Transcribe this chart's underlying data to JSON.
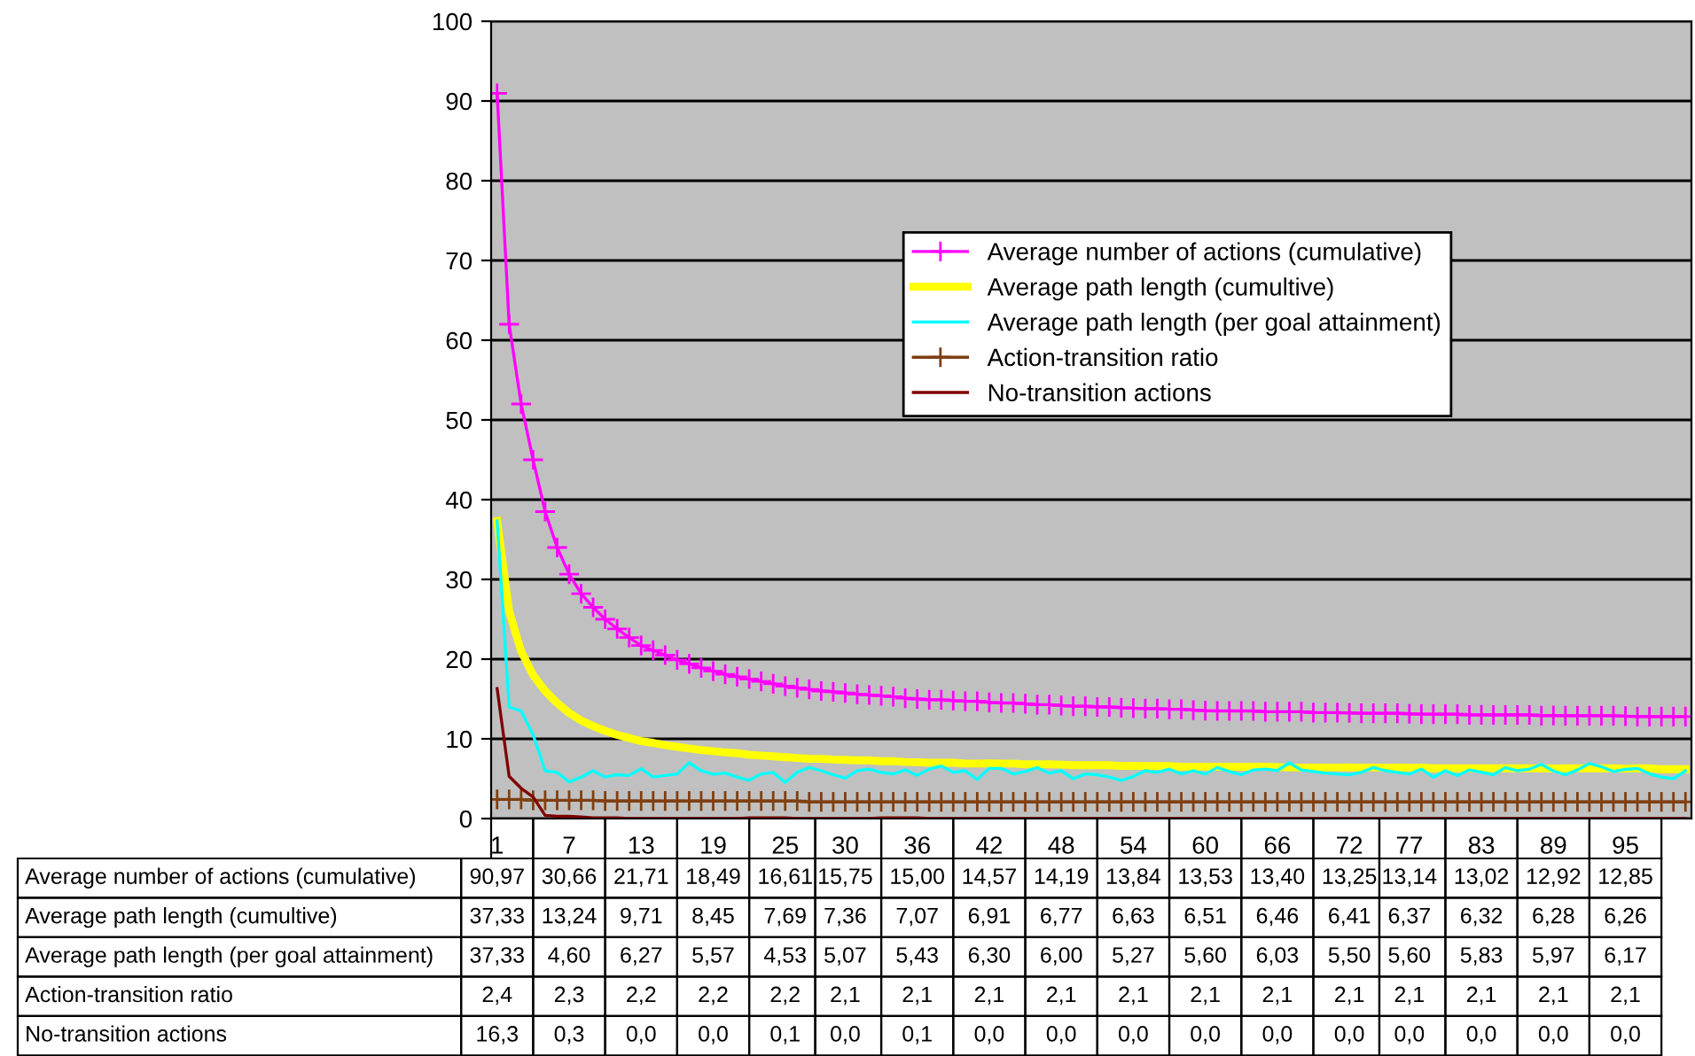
{
  "chart_data": {
    "type": "line",
    "categories": [
      "1",
      null,
      null,
      null,
      null,
      null,
      "7",
      null,
      null,
      null,
      null,
      null,
      "13",
      null,
      null,
      null,
      null,
      null,
      "19",
      null,
      null,
      null,
      null,
      null,
      "25",
      null,
      null,
      null,
      null,
      "30",
      null,
      null,
      null,
      null,
      null,
      "36",
      null,
      null,
      null,
      null,
      null,
      "42",
      null,
      null,
      null,
      null,
      null,
      "48",
      null,
      null,
      null,
      null,
      null,
      "54",
      null,
      null,
      null,
      null,
      null,
      "60",
      null,
      null,
      null,
      null,
      null,
      "66",
      null,
      null,
      null,
      null,
      null,
      "72",
      null,
      null,
      null,
      null,
      "77",
      null,
      null,
      null,
      null,
      null,
      "83",
      null,
      null,
      null,
      null,
      null,
      "89",
      null,
      null,
      null,
      null,
      null,
      "95",
      null,
      null,
      null,
      null,
      null
    ],
    "ylim": [
      0,
      100
    ],
    "yticks": [
      0,
      10,
      20,
      30,
      40,
      50,
      60,
      70,
      80,
      90,
      100
    ],
    "grid": "y",
    "legend": "right",
    "series": [
      {
        "name": "Average number of actions (cumulative)",
        "color": "#ff00ff",
        "marker": "cross",
        "values": [
          90.97,
          62,
          52,
          45,
          38.5,
          34,
          30.66,
          28.2,
          26.5,
          25,
          23.8,
          22.7,
          21.71,
          21.1,
          20.5,
          19.9,
          19.4,
          18.9,
          18.49,
          18.1,
          17.8,
          17.5,
          17.2,
          16.9,
          16.61,
          16.4,
          16.2,
          16.0,
          15.9,
          15.75,
          15.6,
          15.5,
          15.4,
          15.3,
          15.1,
          15.0,
          14.9,
          14.9,
          14.8,
          14.7,
          14.7,
          14.57,
          14.5,
          14.5,
          14.4,
          14.3,
          14.3,
          14.19,
          14.1,
          14.1,
          14.0,
          14.0,
          13.9,
          13.84,
          13.8,
          13.8,
          13.7,
          13.7,
          13.6,
          13.53,
          13.5,
          13.5,
          13.5,
          13.5,
          13.4,
          13.4,
          13.4,
          13.4,
          13.3,
          13.3,
          13.3,
          13.25,
          13.2,
          13.2,
          13.2,
          13.2,
          13.14,
          13.1,
          13.1,
          13.1,
          13.1,
          13.0,
          13.02,
          13.0,
          13.0,
          13.0,
          13.0,
          12.9,
          12.92,
          12.9,
          12.9,
          12.9,
          12.9,
          12.9,
          12.85,
          12.8,
          12.8,
          12.8,
          12.8,
          12.8
        ],
        "value_labels": [
          "90,97",
          null,
          null,
          null,
          null,
          null,
          "30,66",
          null,
          null,
          null,
          null,
          null,
          "21,71",
          null,
          null,
          null,
          null,
          null,
          "18,49",
          null,
          null,
          null,
          null,
          null,
          "16,61",
          null,
          null,
          null,
          null,
          "15,75",
          null,
          null,
          null,
          null,
          null,
          "15,00",
          null,
          null,
          null,
          null,
          null,
          "14,57",
          null,
          null,
          null,
          null,
          null,
          "14,19",
          null,
          null,
          null,
          null,
          null,
          "13,84",
          null,
          null,
          null,
          null,
          null,
          "13,53",
          null,
          null,
          null,
          null,
          null,
          "13,40",
          null,
          null,
          null,
          null,
          null,
          "13,25",
          null,
          null,
          null,
          null,
          "13,14",
          null,
          null,
          null,
          null,
          null,
          "13,02",
          null,
          null,
          null,
          null,
          null,
          "12,92",
          null,
          null,
          null,
          null,
          null,
          "12,85",
          null,
          null,
          null,
          null,
          null
        ]
      },
      {
        "name": "Average path length (cumultive)",
        "color": "#ffff00",
        "marker": "none",
        "values": [
          37.33,
          26,
          21,
          18,
          16,
          14.5,
          13.24,
          12.3,
          11.6,
          11.0,
          10.5,
          10.1,
          9.71,
          9.5,
          9.2,
          9.0,
          8.8,
          8.6,
          8.45,
          8.3,
          8.2,
          8.0,
          7.9,
          7.8,
          7.69,
          7.6,
          7.5,
          7.5,
          7.4,
          7.36,
          7.3,
          7.3,
          7.2,
          7.2,
          7.1,
          7.07,
          7.0,
          7.0,
          7.0,
          6.9,
          6.9,
          6.91,
          6.9,
          6.9,
          6.8,
          6.8,
          6.8,
          6.77,
          6.7,
          6.7,
          6.7,
          6.7,
          6.6,
          6.63,
          6.6,
          6.6,
          6.6,
          6.5,
          6.5,
          6.51,
          6.5,
          6.5,
          6.5,
          6.5,
          6.5,
          6.46,
          6.4,
          6.4,
          6.4,
          6.4,
          6.4,
          6.41,
          6.4,
          6.4,
          6.4,
          6.4,
          6.37,
          6.4,
          6.3,
          6.3,
          6.3,
          6.3,
          6.32,
          6.3,
          6.3,
          6.3,
          6.3,
          6.3,
          6.28,
          6.3,
          6.3,
          6.3,
          6.3,
          6.3,
          6.26,
          6.3,
          6.3,
          6.2,
          6.2,
          6.2
        ],
        "value_labels": [
          "37,33",
          null,
          null,
          null,
          null,
          null,
          "13,24",
          null,
          null,
          null,
          null,
          null,
          "9,71",
          null,
          null,
          null,
          null,
          null,
          "8,45",
          null,
          null,
          null,
          null,
          null,
          "7,69",
          null,
          null,
          null,
          null,
          "7,36",
          null,
          null,
          null,
          null,
          null,
          "7,07",
          null,
          null,
          null,
          null,
          null,
          "6,91",
          null,
          null,
          null,
          null,
          null,
          "6,77",
          null,
          null,
          null,
          null,
          null,
          "6,63",
          null,
          null,
          null,
          null,
          null,
          "6,51",
          null,
          null,
          null,
          null,
          null,
          "6,46",
          null,
          null,
          null,
          null,
          null,
          "6,41",
          null,
          null,
          null,
          null,
          "6,37",
          null,
          null,
          null,
          null,
          null,
          "6,32",
          null,
          null,
          null,
          null,
          null,
          "6,28",
          null,
          null,
          null,
          null,
          null,
          "6,26",
          null,
          null,
          null,
          null,
          null
        ]
      },
      {
        "name": "Average path length (per goal attainment)",
        "color": "#00ffff",
        "marker": "none",
        "values": [
          37.33,
          14,
          13.5,
          10.5,
          6,
          5.8,
          4.6,
          5.2,
          6,
          5.2,
          5.5,
          5.4,
          6.27,
          5.2,
          5.4,
          5.6,
          7.0,
          6.0,
          5.57,
          5.7,
          5.2,
          4.8,
          5.6,
          5.8,
          4.53,
          5.8,
          6.4,
          6.0,
          5.5,
          5.07,
          6.0,
          6.2,
          5.8,
          5.6,
          6.1,
          5.43,
          6.2,
          6.6,
          5.8,
          6.0,
          4.9,
          6.3,
          6.3,
          5.6,
          5.9,
          6.4,
          5.7,
          6.0,
          5.0,
          5.6,
          5.5,
          5.2,
          4.8,
          5.27,
          6.0,
          5.8,
          6.2,
          5.6,
          6.0,
          5.6,
          6.4,
          5.9,
          5.5,
          6.1,
          6.2,
          6.03,
          7.0,
          6.1,
          5.9,
          5.7,
          5.6,
          5.5,
          5.8,
          6.4,
          6.0,
          5.8,
          5.6,
          6.2,
          5.2,
          6.0,
          5.4,
          6.1,
          5.83,
          5.5,
          6.4,
          6.0,
          6.2,
          6.8,
          5.97,
          5.5,
          6.1,
          6.9,
          6.5,
          5.9,
          6.17,
          6.3,
          5.6,
          5.2,
          5.0,
          6.0
        ],
        "value_labels": [
          "37,33",
          null,
          null,
          null,
          null,
          null,
          "4,60",
          null,
          null,
          null,
          null,
          null,
          "6,27",
          null,
          null,
          null,
          null,
          null,
          "5,57",
          null,
          null,
          null,
          null,
          null,
          "4,53",
          null,
          null,
          null,
          null,
          "5,07",
          null,
          null,
          null,
          null,
          null,
          "5,43",
          null,
          null,
          null,
          null,
          null,
          "6,30",
          null,
          null,
          null,
          null,
          null,
          "6,00",
          null,
          null,
          null,
          null,
          null,
          "5,27",
          null,
          null,
          null,
          null,
          null,
          "5,60",
          null,
          null,
          null,
          null,
          null,
          "6,03",
          null,
          null,
          null,
          null,
          null,
          "5,50",
          null,
          null,
          null,
          null,
          "5,60",
          null,
          null,
          null,
          null,
          null,
          "5,83",
          null,
          null,
          null,
          null,
          null,
          "5,97",
          null,
          null,
          null,
          null,
          null,
          "6,17",
          null,
          null,
          null,
          null,
          null
        ]
      },
      {
        "name": "Action-transition ratio",
        "color": "#7f3f10",
        "marker": "cross",
        "values": [
          2.4,
          2.4,
          2.4,
          2.3,
          2.3,
          2.3,
          2.3,
          2.3,
          2.3,
          2.2,
          2.2,
          2.2,
          2.2,
          2.2,
          2.2,
          2.2,
          2.2,
          2.2,
          2.2,
          2.2,
          2.2,
          2.2,
          2.2,
          2.2,
          2.2,
          2.2,
          2.1,
          2.1,
          2.1,
          2.1,
          2.1,
          2.1,
          2.1,
          2.1,
          2.1,
          2.1,
          2.1,
          2.1,
          2.1,
          2.1,
          2.1,
          2.1,
          2.1,
          2.1,
          2.1,
          2.1,
          2.1,
          2.1,
          2.1,
          2.1,
          2.1,
          2.1,
          2.1,
          2.1,
          2.1,
          2.1,
          2.1,
          2.1,
          2.1,
          2.1,
          2.1,
          2.1,
          2.1,
          2.1,
          2.1,
          2.1,
          2.1,
          2.1,
          2.1,
          2.1,
          2.1,
          2.1,
          2.1,
          2.1,
          2.1,
          2.1,
          2.1,
          2.1,
          2.1,
          2.1,
          2.1,
          2.1,
          2.1,
          2.1,
          2.1,
          2.1,
          2.1,
          2.1,
          2.1,
          2.1,
          2.1,
          2.1,
          2.1,
          2.1,
          2.1,
          2.1,
          2.1,
          2.1,
          2.1,
          2.1
        ],
        "value_labels": [
          "2,4",
          null,
          null,
          null,
          null,
          null,
          "2,3",
          null,
          null,
          null,
          null,
          null,
          "2,2",
          null,
          null,
          null,
          null,
          null,
          "2,2",
          null,
          null,
          null,
          null,
          null,
          "2,2",
          null,
          null,
          null,
          null,
          "2,1",
          null,
          null,
          null,
          null,
          null,
          "2,1",
          null,
          null,
          null,
          null,
          null,
          "2,1",
          null,
          null,
          null,
          null,
          null,
          "2,1",
          null,
          null,
          null,
          null,
          null,
          "2,1",
          null,
          null,
          null,
          null,
          null,
          "2,1",
          null,
          null,
          null,
          null,
          null,
          "2,1",
          null,
          null,
          null,
          null,
          null,
          "2,1",
          null,
          null,
          null,
          null,
          "2,1",
          null,
          null,
          null,
          null,
          null,
          "2,1",
          null,
          null,
          null,
          null,
          null,
          "2,1",
          null,
          null,
          null,
          null,
          null,
          "2,1",
          null,
          null,
          null,
          null,
          null
        ]
      },
      {
        "name": "No-transition actions",
        "color": "#800000",
        "marker": "none",
        "values": [
          16.3,
          5.3,
          3.8,
          2.7,
          0.4,
          0.3,
          0.3,
          0.2,
          0.1,
          0.1,
          0.1,
          0.0,
          0.0,
          0.0,
          0.0,
          0.0,
          0.0,
          0.0,
          0.0,
          0.0,
          0.0,
          0.1,
          0.1,
          0.1,
          0.1,
          0.0,
          0.0,
          0.0,
          0.0,
          0.0,
          0.0,
          0.0,
          0.1,
          0.1,
          0.1,
          0.1,
          0.0,
          0.0,
          0.0,
          0.0,
          0.0,
          0.0,
          0.0,
          0.0,
          0.0,
          0.0,
          0.0,
          0.0,
          0.0,
          0.0,
          0.0,
          0.0,
          0.0,
          0.0,
          0.0,
          0.0,
          0.0,
          0.0,
          0.0,
          0.0,
          0.0,
          0.0,
          0.0,
          0.0,
          0.0,
          0.0,
          0.0,
          0.0,
          0.0,
          0.0,
          0.0,
          0.0,
          0.0,
          0.0,
          0.0,
          0.0,
          0.0,
          0.0,
          0.0,
          0.0,
          0.0,
          0.0,
          0.0,
          0.0,
          0.0,
          0.0,
          0.0,
          0.0,
          0.0,
          0.0,
          0.0,
          0.0,
          0.0,
          0.0,
          0.0,
          0.0,
          0.0,
          0.0,
          0.0,
          0.0
        ],
        "value_labels": [
          "16,3",
          null,
          null,
          null,
          null,
          null,
          "0,3",
          null,
          null,
          null,
          null,
          null,
          "0,0",
          null,
          null,
          null,
          null,
          null,
          "0,0",
          null,
          null,
          null,
          null,
          null,
          "0,1",
          null,
          null,
          null,
          null,
          "0,0",
          null,
          null,
          null,
          null,
          null,
          "0,1",
          null,
          null,
          null,
          null,
          null,
          "0,0",
          null,
          null,
          null,
          null,
          null,
          "0,0",
          null,
          null,
          null,
          null,
          null,
          "0,0",
          null,
          null,
          null,
          null,
          null,
          "0,0",
          null,
          null,
          null,
          null,
          null,
          "0,0",
          null,
          null,
          null,
          null,
          null,
          "0,0",
          null,
          null,
          null,
          null,
          "0,0",
          null,
          null,
          null,
          null,
          null,
          "0,0",
          null,
          null,
          null,
          null,
          null,
          "0,0",
          null,
          null,
          null,
          null,
          null,
          "0,0",
          null,
          null,
          null,
          null,
          null
        ]
      }
    ]
  }
}
